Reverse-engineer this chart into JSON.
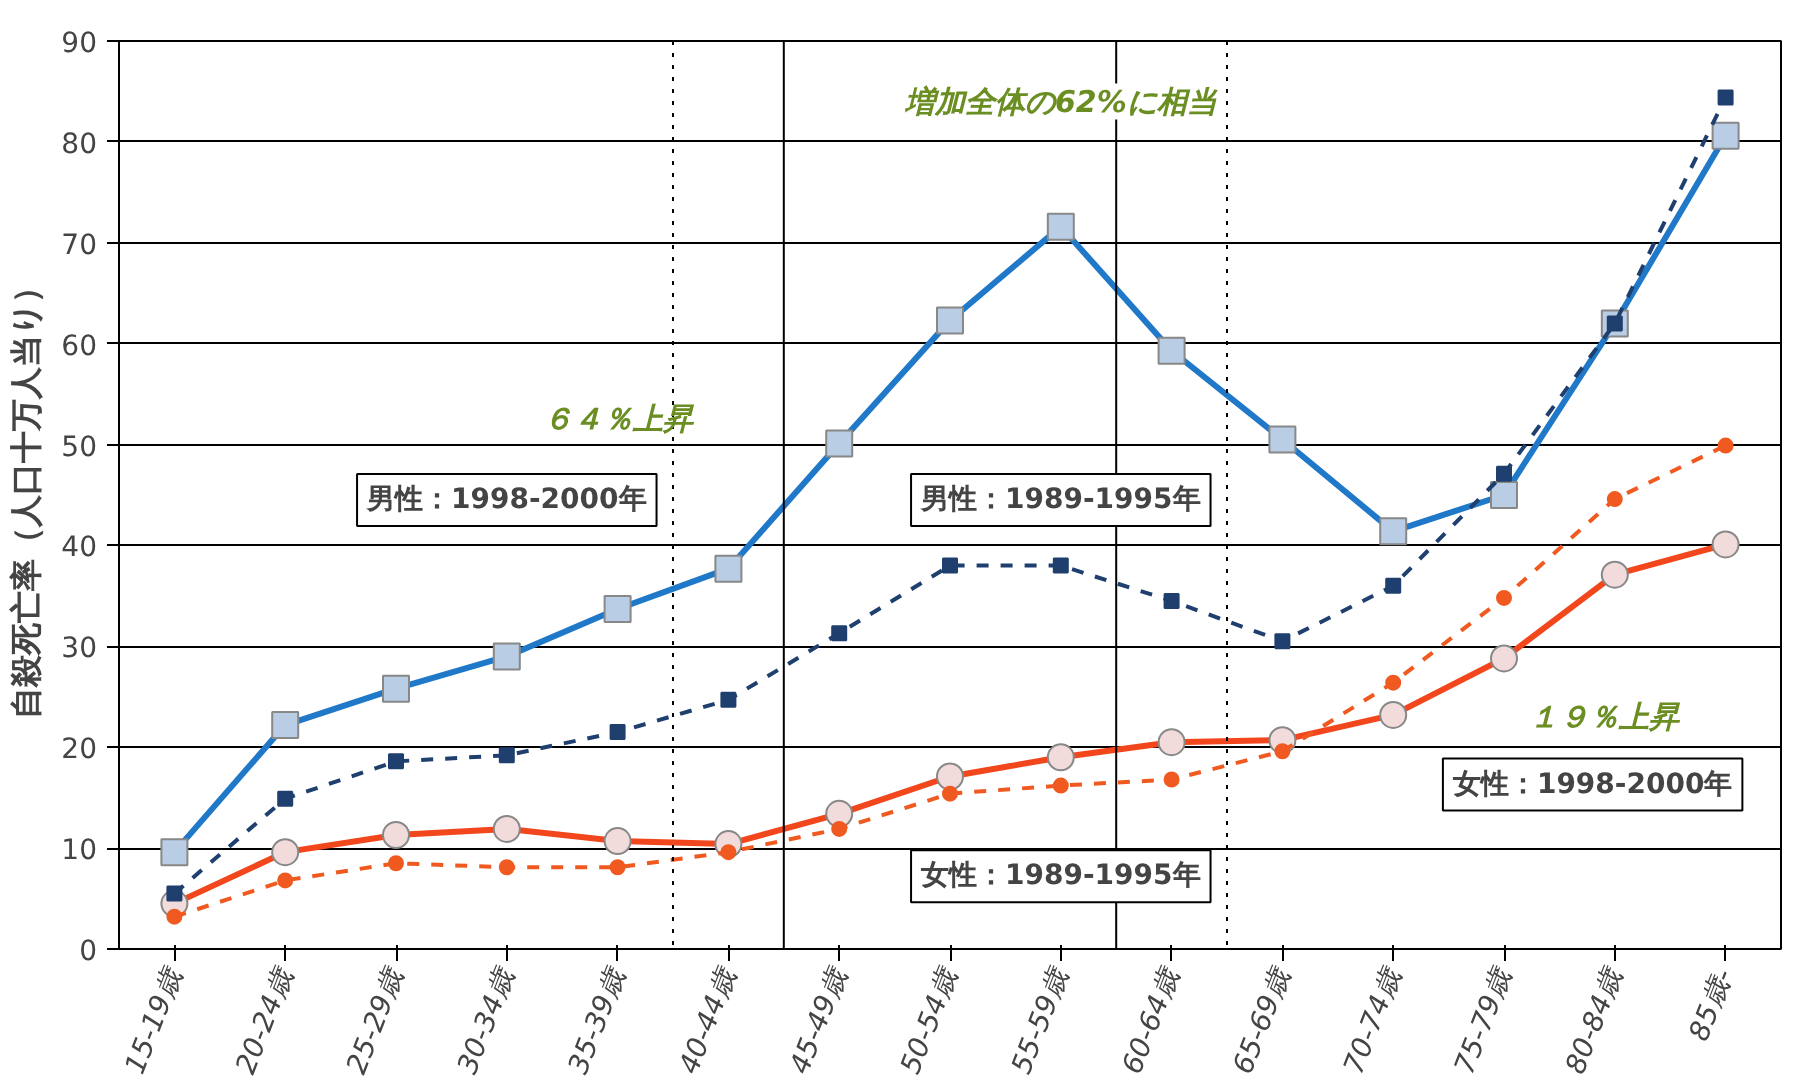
{
  "chart_data": {
    "type": "line",
    "ylabel": "自殺死亡率（人口十万人当り）",
    "categories": [
      "15-19歳",
      "20-24歳",
      "25-29歳",
      "30-34歳",
      "35-39歳",
      "40-44歳",
      "45-49歳",
      "50-54歳",
      "55-59歳",
      "60-64歳",
      "65-69歳",
      "70-74歳",
      "75-79歳",
      "80-84歳",
      "85歳-"
    ],
    "series": [
      {
        "name": "男性：1998-2000年",
        "color": "#1f78c8",
        "marker": "square",
        "line_style": "solid",
        "values": [
          9.6,
          22.2,
          25.8,
          29.0,
          33.7,
          37.7,
          50.1,
          62.3,
          71.6,
          59.3,
          50.5,
          41.4,
          45.0,
          62.0,
          80.6
        ]
      },
      {
        "name": "男性：1989-1995年",
        "color": "#1f3f6e",
        "marker": "square",
        "line_style": "dashed",
        "values": [
          5.5,
          14.9,
          18.6,
          19.2,
          21.5,
          24.7,
          31.3,
          38.0,
          38.0,
          34.5,
          30.5,
          36.0,
          47.1,
          62.0,
          84.4
        ]
      },
      {
        "name": "女性：1998-2000年",
        "color": "#f2461c",
        "marker": "circle",
        "line_style": "solid",
        "values": [
          4.5,
          9.6,
          11.3,
          11.9,
          10.7,
          10.4,
          13.4,
          17.1,
          19.0,
          20.5,
          20.7,
          23.2,
          28.8,
          37.1,
          40.1
        ]
      },
      {
        "name": "女性：1989-1995年",
        "color": "#f05a20",
        "marker": "circle",
        "line_style": "dashed",
        "values": [
          3.2,
          6.8,
          8.5,
          8.1,
          8.1,
          9.6,
          11.9,
          15.4,
          16.2,
          16.8,
          19.6,
          26.4,
          34.8,
          44.6,
          49.9
        ]
      }
    ],
    "ylim": [
      0,
      90
    ],
    "yticks": [
      0,
      10,
      20,
      30,
      40,
      50,
      60,
      70,
      80,
      90
    ],
    "grid": "y",
    "legend": false,
    "annotations": [
      "増加全体の62%に相当",
      "６４％上昇",
      "１９％上昇"
    ]
  }
}
